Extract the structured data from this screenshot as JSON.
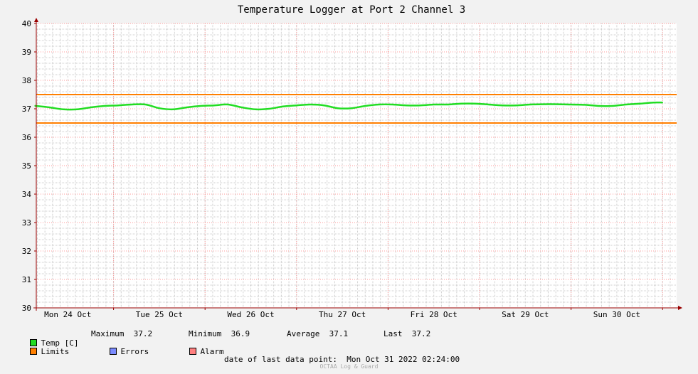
{
  "chart_data": {
    "type": "line",
    "title": "Temperature Logger at Port 2 Channel 3",
    "ylim": [
      30,
      40
    ],
    "yticks": [
      30,
      31,
      32,
      33,
      34,
      35,
      36,
      37,
      38,
      39,
      40
    ],
    "xticks": [
      "Mon 24 Oct",
      "Tue 25 Oct",
      "Wed 26 Oct",
      "Thu 27 Oct",
      "Fri 28 Oct",
      "Sat 29 Oct",
      "Sun 30 Oct"
    ],
    "xlim_days": [
      0,
      7
    ],
    "grid": true,
    "series": [
      {
        "name": "Temp [C]",
        "color": "#00ee00",
        "x_days": [
          0.0,
          0.15,
          0.3,
          0.45,
          0.6,
          0.75,
          0.9,
          1.05,
          1.2,
          1.35,
          1.5,
          1.65,
          1.8,
          1.95,
          2.1,
          2.25,
          2.4,
          2.55,
          2.7,
          2.85,
          3.0,
          3.15,
          3.3,
          3.45,
          3.6,
          3.75,
          3.9,
          4.05,
          4.2,
          4.35,
          4.5,
          4.65,
          4.8,
          4.95,
          5.1,
          5.25,
          5.4,
          5.55,
          5.7,
          5.85,
          6.0,
          6.15,
          6.3,
          6.45,
          6.6,
          6.75,
          6.9,
          7.0
        ],
        "values": [
          37.1,
          37.1,
          37.05,
          36.98,
          36.98,
          37.05,
          37.1,
          37.12,
          37.15,
          37.15,
          37.02,
          36.98,
          37.05,
          37.1,
          37.12,
          37.15,
          37.05,
          36.98,
          37.0,
          37.08,
          37.12,
          37.15,
          37.12,
          37.02,
          37.02,
          37.1,
          37.15,
          37.15,
          37.12,
          37.12,
          37.15,
          37.15,
          37.18,
          37.18,
          37.15,
          37.12,
          37.12,
          37.15,
          37.16,
          37.16,
          37.15,
          37.14,
          37.1,
          37.1,
          37.15,
          37.18,
          37.22,
          37.22
        ]
      },
      {
        "name": "Limits",
        "color": "#ff7f00",
        "upper": 37.5,
        "lower": 36.5
      }
    ],
    "legend": {
      "temp_label": "Temp [C]",
      "maximum_label": "Maximum",
      "maximum_value": "37.2",
      "minimum_label": "Minimum",
      "minimum_value": "36.9",
      "average_label": "Average",
      "average_value": "37.1",
      "last_label": "Last",
      "last_value": "37.2",
      "limits_label": "Limits",
      "errors_label": "Errors",
      "alarm_label": "Alarm"
    },
    "colors": {
      "temp": "#22dd22",
      "limits": "#ff7f00",
      "errors": "#7b8bff",
      "alarm": "#ff7f7f",
      "grid_major": "#ff9999",
      "grid_minor": "#cccccc",
      "axis": "#990000"
    },
    "footer": {
      "last_point_label": "date of last data point:",
      "last_point_value": "Mon Oct 31 2022 02:24:00",
      "credit": "OCTAA Log & Guard"
    }
  }
}
